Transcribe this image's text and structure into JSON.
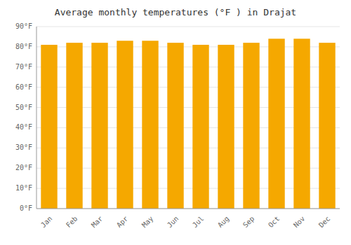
{
  "chart_data": {
    "type": "bar",
    "title": "Average monthly temperatures (°F ) in Drajat",
    "categories": [
      "Jan",
      "Feb",
      "Mar",
      "Apr",
      "May",
      "Jun",
      "Jul",
      "Aug",
      "Sep",
      "Oct",
      "Nov",
      "Dec"
    ],
    "values": [
      81,
      82,
      82,
      83,
      83,
      82,
      81,
      81,
      82,
      84,
      84,
      82
    ],
    "color": "#F5A800",
    "ylim": [
      0,
      90
    ],
    "yticks": [
      {
        "value": 0,
        "label": "0°F"
      },
      {
        "value": 10,
        "label": "10°F"
      },
      {
        "value": 20,
        "label": "20°F"
      },
      {
        "value": 30,
        "label": "30°F"
      },
      {
        "value": 40,
        "label": "40°F"
      },
      {
        "value": 50,
        "label": "50°F"
      },
      {
        "value": 60,
        "label": "60°F"
      },
      {
        "value": 70,
        "label": "70°F"
      },
      {
        "value": 80,
        "label": "80°F"
      },
      {
        "value": 90,
        "label": "90°F"
      }
    ],
    "grid": true
  }
}
